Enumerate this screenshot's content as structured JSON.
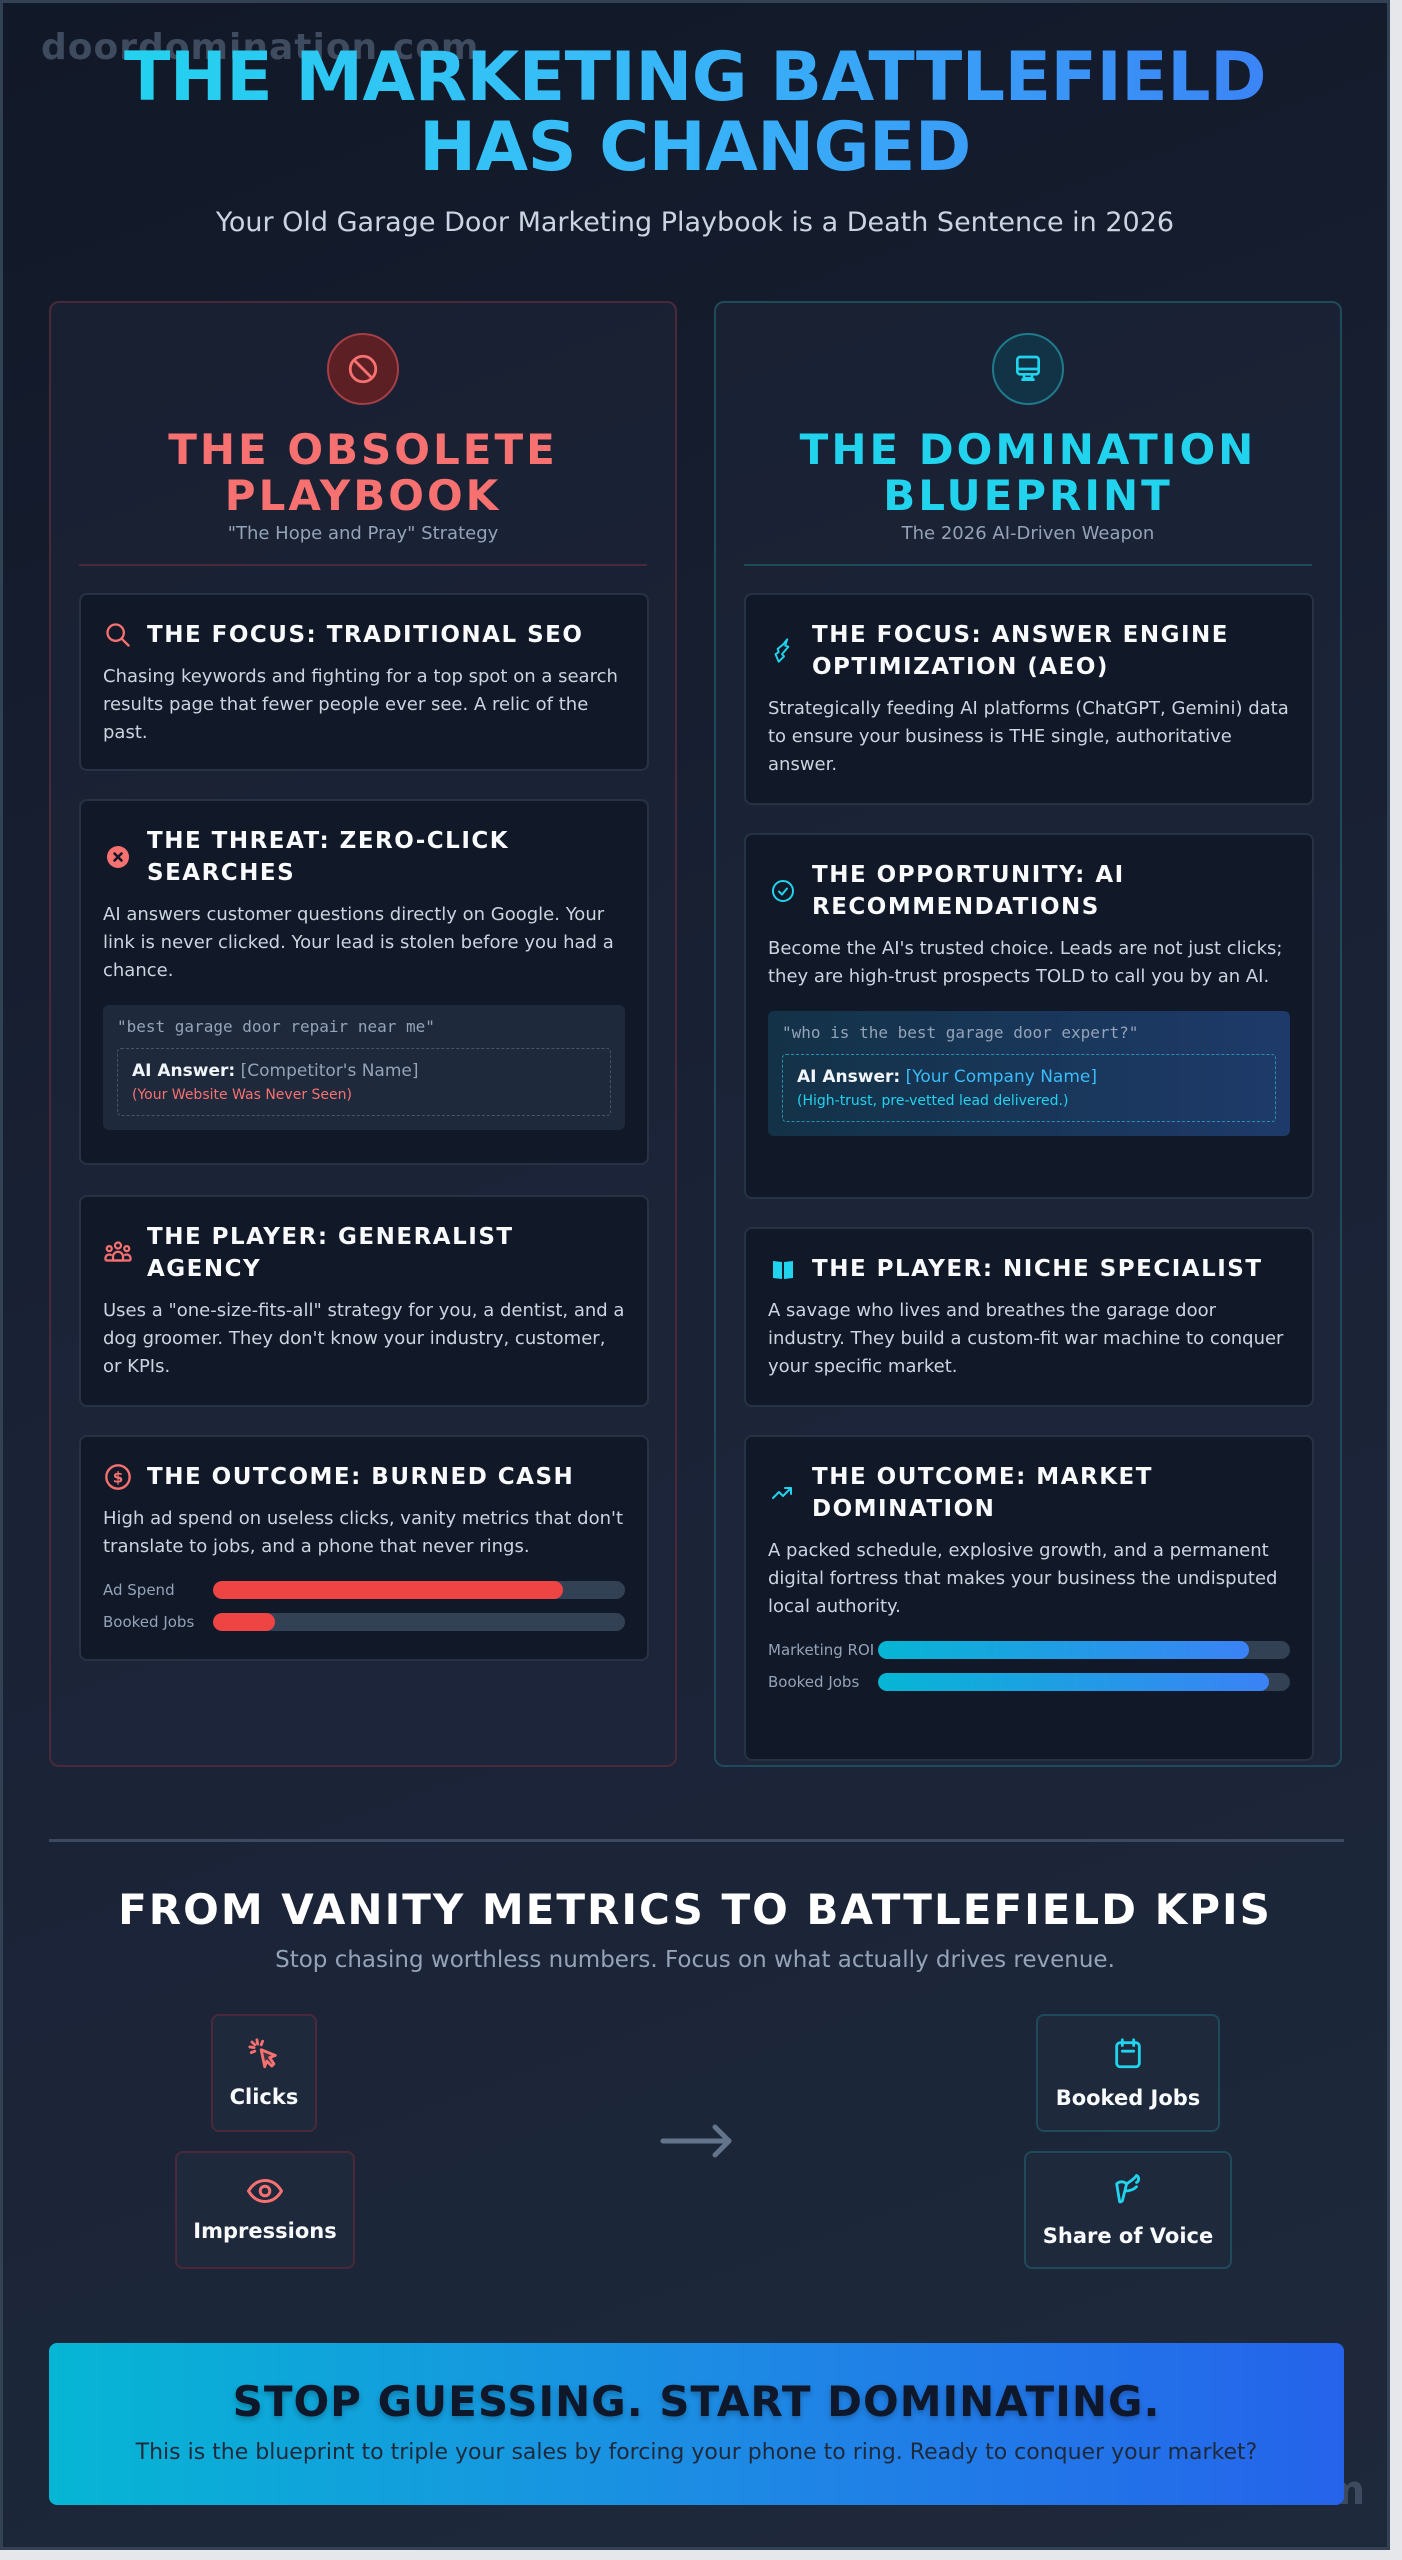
{
  "watermark": "doordomination.com",
  "hero": {
    "title": "THE MARKETING BATTLEFIELD HAS CHANGED",
    "subtitle": "Your Old Garage Door Marketing Playbook is a Death Sentence in 2026"
  },
  "left": {
    "icon": "ban-icon",
    "title": "THE OBSOLETE PLAYBOOK",
    "tagline": "\"The Hope and Pray\" Strategy",
    "accent": "#f87171",
    "cards": [
      {
        "icon": "search-icon",
        "title": "THE FOCUS: TRADITIONAL SEO",
        "body": "Chasing keywords and fighting for a top spot on a search results page that fewer people ever see. A relic of the past."
      },
      {
        "icon": "x-circle-icon",
        "title": "THE THREAT: ZERO-CLICK SEARCHES",
        "body": "AI answers customer questions directly on Google. Your link is never clicked. Your lead is stolen before you had a chance.",
        "query": "\"best garage door repair near me\"",
        "answer_label": "AI Answer:",
        "answer_value": "[Competitor's Name]",
        "answer_note": "(Your Website Was Never Seen)"
      },
      {
        "icon": "users-icon",
        "title": "THE PLAYER: GENERALIST AGENCY",
        "body": "Uses a \"one-size-fits-all\" strategy for you, a dentist, and a dog groomer. They don't know your industry, customer, or KPIs."
      },
      {
        "icon": "dollar-circle-icon",
        "title": "THE OUTCOME: BURNED CASH",
        "body": "High ad spend on useless clicks, vanity metrics that don't translate to jobs, and a phone that never rings.",
        "bars": [
          {
            "label": "Ad Spend",
            "value": 85
          },
          {
            "label": "Booked Jobs",
            "value": 15
          }
        ]
      }
    ]
  },
  "right": {
    "icon": "monitor-icon",
    "title": "THE DOMINATION BLUEPRINT",
    "tagline": "The 2026 AI-Driven Weapon",
    "accent": "#22d3ee",
    "cards": [
      {
        "icon": "brain-icon",
        "title": "THE FOCUS: ANSWER ENGINE OPTIMIZATION (AEO)",
        "body": "Strategically feeding AI platforms (ChatGPT, Gemini) data to ensure your business is THE single, authoritative answer."
      },
      {
        "icon": "check-circle-icon",
        "title": "THE OPPORTUNITY: AI RECOMMENDATIONS",
        "body": "Become the AI's trusted choice. Leads are not just clicks; they are high-trust prospects TOLD to call you by an AI.",
        "query": "\"who is the best garage door expert?\"",
        "answer_label": "AI Answer:",
        "answer_value": "[Your Company Name]",
        "answer_note": "(High-trust, pre-vetted lead delivered.)"
      },
      {
        "icon": "map-icon",
        "title": "THE PLAYER: NICHE SPECIALIST",
        "body": "A savage who lives and breathes the garage door industry. They build a custom-fit war machine to conquer your specific market."
      },
      {
        "icon": "trending-up-icon",
        "title": "THE OUTCOME: MARKET DOMINATION",
        "body": "A packed schedule, explosive growth, and a permanent digital fortress that makes your business the undisputed local authority.",
        "bars": [
          {
            "label": "Marketing ROI",
            "value": 90
          },
          {
            "label": "Booked Jobs",
            "value": 95
          }
        ]
      }
    ]
  },
  "kpis": {
    "title": "FROM VANITY METRICS TO BATTLEFIELD KPIS",
    "subtitle": "Stop chasing worthless numbers. Focus on what actually drives revenue.",
    "vanity": [
      {
        "icon": "cursor-click-icon",
        "label": "Clicks"
      },
      {
        "icon": "eye-icon",
        "label": "Impressions"
      }
    ],
    "arrow": "arrow-right-icon",
    "battlefield": [
      {
        "icon": "calendar-icon",
        "label": "Booked Jobs"
      },
      {
        "icon": "megaphone-icon",
        "label": "Share of Voice"
      }
    ]
  },
  "cta": {
    "title": "STOP GUESSING. START DOMINATING.",
    "subtitle": "This is the blueprint to triple your sales by forcing your phone to ring. Ready to conquer your market?"
  },
  "colors": {
    "obsolete": "#f87171",
    "domination": "#22d3ee",
    "bar_bad": "#ef4444",
    "bar_good_start": "#06b6d4",
    "bar_good_end": "#3b82f6",
    "cta_start": "#06b6d4",
    "cta_end": "#2563eb"
  }
}
